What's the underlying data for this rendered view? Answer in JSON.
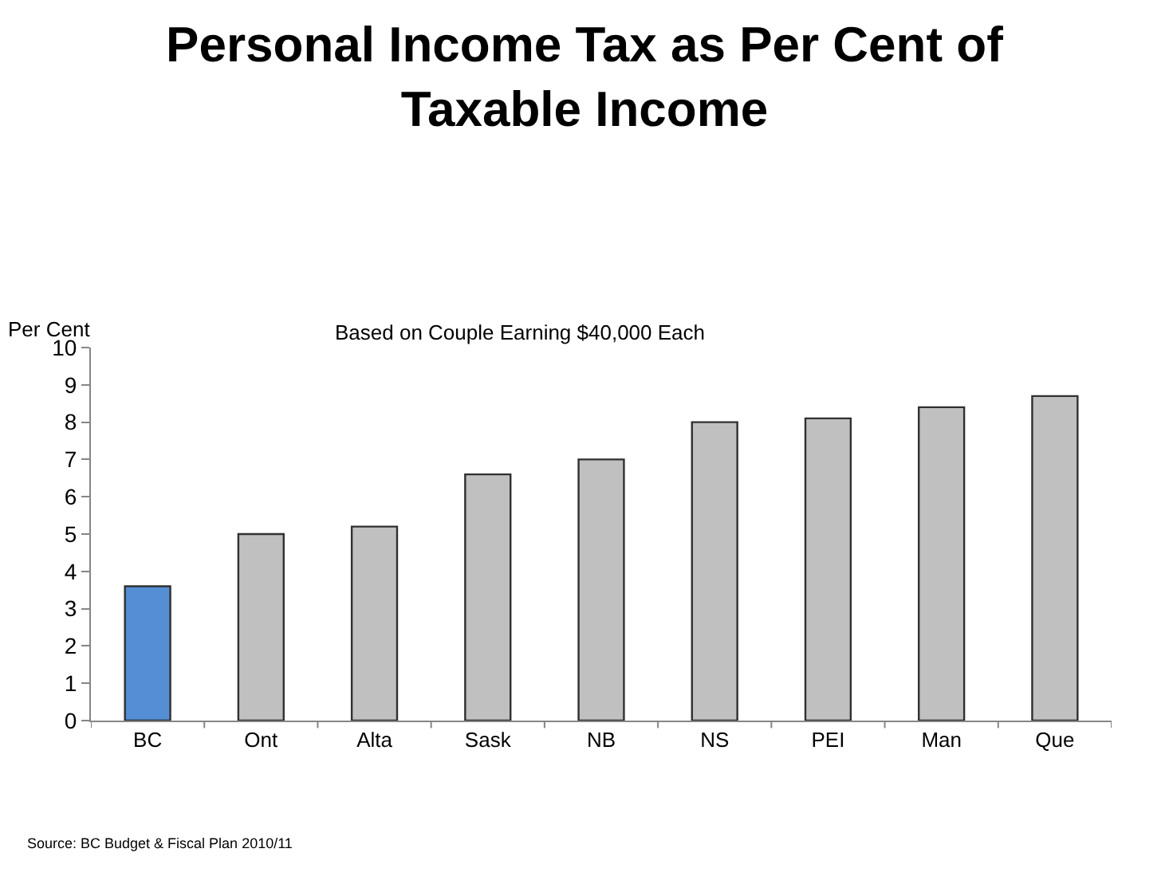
{
  "chart_data": {
    "type": "bar",
    "title": "Personal Income Tax as Per Cent of Taxable Income",
    "ylabel": "Per Cent",
    "annotations": [
      "Based on Couple Earning $40,000 Each",
      "Source: BC Budget & Fiscal Plan 2010/11"
    ],
    "categories": [
      "BC",
      "Ont",
      "Alta",
      "Sask",
      "NB",
      "NS",
      "PEI",
      "Man",
      "Que"
    ],
    "values": [
      3.6,
      5.0,
      5.2,
      6.6,
      7.0,
      8.0,
      8.1,
      8.4,
      8.7
    ],
    "colors": [
      "#558ed5",
      "#c0c0c0",
      "#c0c0c0",
      "#c0c0c0",
      "#c0c0c0",
      "#c0c0c0",
      "#c0c0c0",
      "#c0c0c0",
      "#c0c0c0"
    ],
    "ylim": [
      0,
      10
    ],
    "yticks": [
      0,
      1,
      2,
      3,
      4,
      5,
      6,
      7,
      8,
      9,
      10
    ]
  }
}
